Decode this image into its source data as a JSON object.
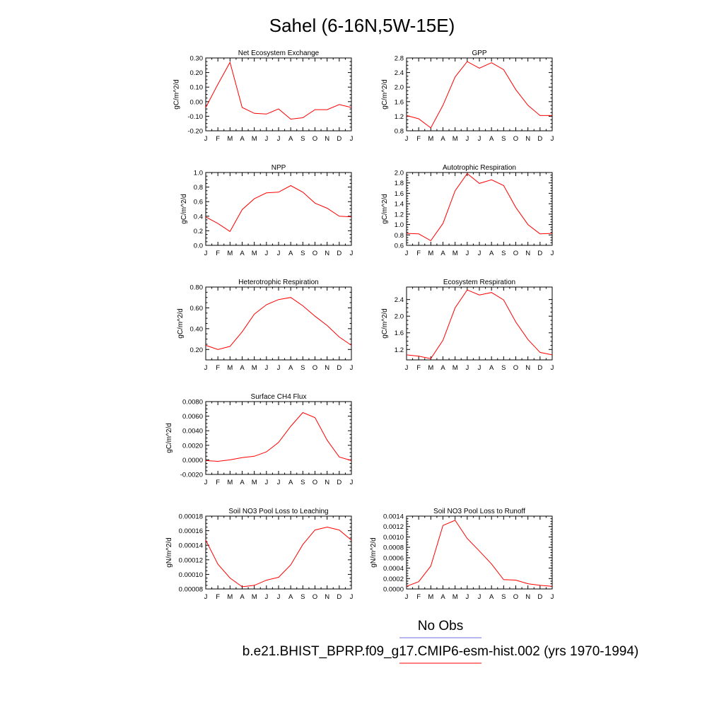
{
  "title": "Sahel (6-16N,5W-15E)",
  "legend": [
    {
      "label": "No Obs",
      "color": "#6f6fdf"
    },
    {
      "label": "b.e21.BHIST_BPRP.f09_g17.CMIP6-esm-hist.002 (yrs 1970-1994)",
      "color": "#ff0000"
    }
  ],
  "chart_data": [
    {
      "type": "line",
      "title": "Net Ecosystem Exchange",
      "ylabel": "gC/m^2/d",
      "categories": [
        "J",
        "F",
        "M",
        "A",
        "M",
        "J",
        "J",
        "A",
        "S",
        "O",
        "N",
        "D",
        "J"
      ],
      "ylim": [
        -0.2,
        0.3
      ],
      "yticks": [
        "0.30",
        "0.20",
        "0.10",
        "0.00",
        "-0.10",
        "-0.20"
      ],
      "series": [
        {
          "color": "#ff0000",
          "values": [
            -0.04,
            0.12,
            0.27,
            -0.04,
            -0.08,
            -0.085,
            -0.05,
            -0.12,
            -0.11,
            -0.055,
            -0.055,
            -0.02,
            -0.04
          ]
        }
      ]
    },
    {
      "type": "line",
      "title": "GPP",
      "ylabel": "gC/m^2/d",
      "categories": [
        "J",
        "F",
        "M",
        "A",
        "M",
        "J",
        "J",
        "A",
        "S",
        "O",
        "N",
        "D",
        "J"
      ],
      "ylim": [
        0.8,
        2.8
      ],
      "yticks": [
        "2.8",
        "2.4",
        "2.0",
        "1.6",
        "1.2",
        "0.8"
      ],
      "series": [
        {
          "color": "#ff0000",
          "values": [
            1.22,
            1.13,
            0.88,
            1.5,
            2.28,
            2.7,
            2.52,
            2.67,
            2.48,
            1.93,
            1.5,
            1.22,
            1.22
          ]
        }
      ]
    },
    {
      "type": "line",
      "title": "NPP",
      "ylabel": "gC/m^2/d",
      "categories": [
        "J",
        "F",
        "M",
        "A",
        "M",
        "J",
        "J",
        "A",
        "S",
        "O",
        "N",
        "D",
        "J"
      ],
      "ylim": [
        0.0,
        1.0
      ],
      "yticks": [
        "1.0",
        "0.8",
        "0.6",
        "0.4",
        "0.2",
        "0.0"
      ],
      "series": [
        {
          "color": "#ff0000",
          "values": [
            0.39,
            0.3,
            0.19,
            0.49,
            0.64,
            0.72,
            0.73,
            0.82,
            0.73,
            0.58,
            0.51,
            0.4,
            0.39
          ]
        }
      ]
    },
    {
      "type": "line",
      "title": "Autotrophic Respiration",
      "ylabel": "gC/m^2/d",
      "categories": [
        "J",
        "F",
        "M",
        "A",
        "M",
        "J",
        "J",
        "A",
        "S",
        "O",
        "N",
        "D",
        "J"
      ],
      "ylim": [
        0.6,
        2.0
      ],
      "yticks": [
        "2.0",
        "1.8",
        "1.6",
        "1.4",
        "1.2",
        "1.0",
        "0.8",
        "0.6"
      ],
      "series": [
        {
          "color": "#ff0000",
          "values": [
            0.83,
            0.82,
            0.69,
            1.02,
            1.65,
            1.98,
            1.79,
            1.86,
            1.75,
            1.33,
            1.0,
            0.82,
            0.83
          ]
        }
      ]
    },
    {
      "type": "line",
      "title": "Heterotrophic Respiration",
      "ylabel": "gC/m^2/d",
      "categories": [
        "J",
        "F",
        "M",
        "A",
        "M",
        "J",
        "J",
        "A",
        "S",
        "O",
        "N",
        "D",
        "J"
      ],
      "ylim": [
        0.1,
        0.8
      ],
      "yticks": [
        "0.80",
        "0.60",
        "0.40",
        "0.20"
      ],
      "yticksValues": [
        0.8,
        0.6,
        0.4,
        0.2
      ],
      "series": [
        {
          "color": "#ff0000",
          "values": [
            0.24,
            0.2,
            0.23,
            0.37,
            0.54,
            0.63,
            0.68,
            0.7,
            0.62,
            0.52,
            0.43,
            0.32,
            0.24
          ]
        }
      ]
    },
    {
      "type": "line",
      "title": "Ecosystem Respiration",
      "ylabel": "gC/m^2/d",
      "categories": [
        "J",
        "F",
        "M",
        "A",
        "M",
        "J",
        "J",
        "A",
        "S",
        "O",
        "N",
        "D",
        "J"
      ],
      "ylim": [
        0.95,
        2.7
      ],
      "yticks": [
        "2.4",
        "2.0",
        "1.6",
        "1.2"
      ],
      "yticksValues": [
        2.4,
        2.0,
        1.6,
        1.2
      ],
      "series": [
        {
          "color": "#ff0000",
          "values": [
            1.07,
            1.04,
            0.98,
            1.42,
            2.2,
            2.63,
            2.51,
            2.57,
            2.39,
            1.86,
            1.44,
            1.13,
            1.07
          ]
        }
      ]
    },
    {
      "type": "line",
      "title": "Surface CH4 Flux",
      "ylabel": "gC/m^2/d",
      "categories": [
        "J",
        "F",
        "M",
        "A",
        "M",
        "J",
        "J",
        "A",
        "S",
        "O",
        "N",
        "D",
        "J"
      ],
      "ylim": [
        -0.002,
        0.008
      ],
      "yticks": [
        "0.0080",
        "0.0060",
        "0.0040",
        "0.0020",
        "0.0000",
        "-0.0020"
      ],
      "series": [
        {
          "color": "#ff0000",
          "values": [
            -0.0001,
            -0.0002,
            0.0,
            0.0003,
            0.0005,
            0.0011,
            0.0024,
            0.0046,
            0.0065,
            0.0058,
            0.0027,
            0.0004,
            -0.0001
          ]
        }
      ]
    },
    {
      "type": "line",
      "title": "Soil NO3 Pool Loss to Leaching",
      "ylabel": "gN/m^2/d",
      "categories": [
        "J",
        "F",
        "M",
        "A",
        "M",
        "J",
        "J",
        "A",
        "S",
        "O",
        "N",
        "D",
        "J"
      ],
      "ylim": [
        8e-05,
        0.00018
      ],
      "yticks": [
        "0.00018",
        "0.00016",
        "0.00014",
        "0.00012",
        "0.00010",
        "0.00008"
      ],
      "series": [
        {
          "color": "#ff0000",
          "values": [
            0.000147,
            0.000114,
            9.5e-05,
            8.3e-05,
            8.5e-05,
            9.2e-05,
            9.6e-05,
            0.000113,
            0.000141,
            0.000161,
            0.000165,
            0.000161,
            0.000147
          ]
        }
      ]
    },
    {
      "type": "line",
      "title": "Soil NO3 Pool Loss to Runoff",
      "ylabel": "gN/m^2/d",
      "categories": [
        "J",
        "F",
        "M",
        "A",
        "M",
        "J",
        "J",
        "A",
        "S",
        "O",
        "N",
        "D",
        "J"
      ],
      "ylim": [
        0.0,
        0.0014
      ],
      "yticks": [
        "0.0014",
        "0.0012",
        "0.0010",
        "0.0008",
        "0.0006",
        "0.0004",
        "0.0002",
        "0.0000"
      ],
      "series": [
        {
          "color": "#ff0000",
          "values": [
            5e-05,
            0.00014,
            0.00044,
            0.00122,
            0.00132,
            0.00097,
            0.00073,
            0.00048,
            0.00018,
            0.00017,
            0.0001,
            7e-05,
            5e-05
          ]
        }
      ]
    }
  ]
}
